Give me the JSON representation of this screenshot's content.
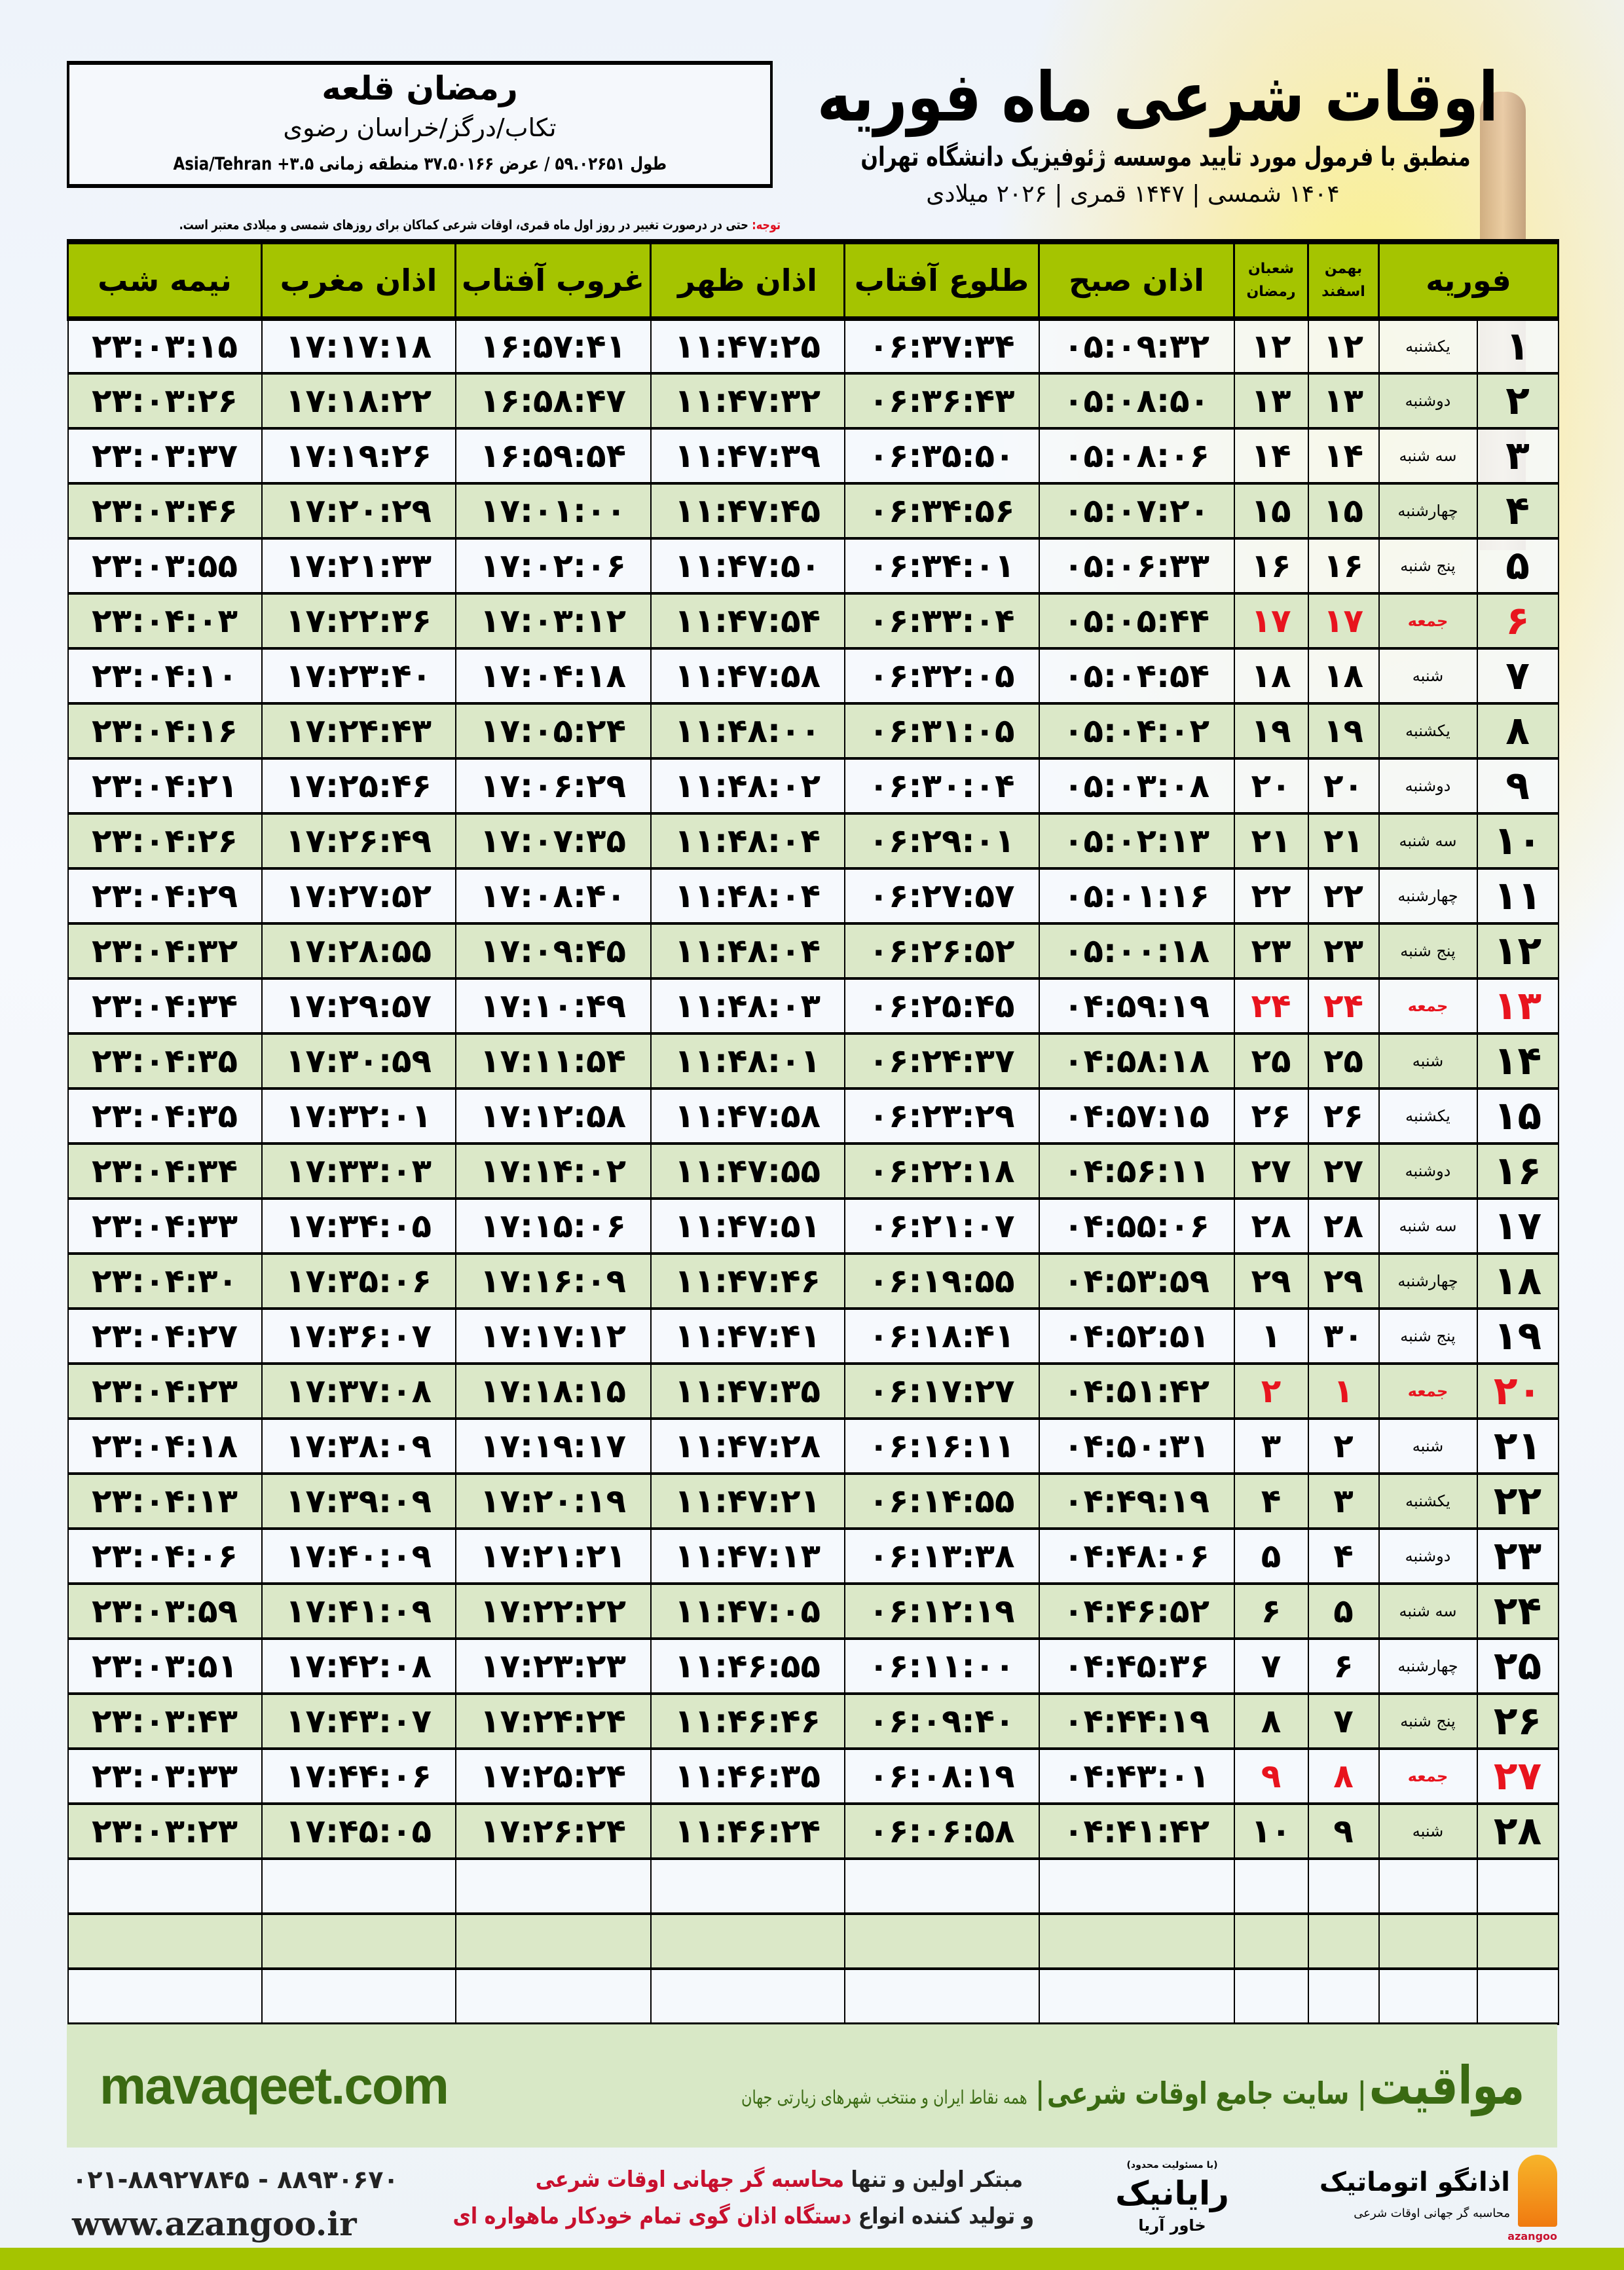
{
  "info": {
    "city": "رمضان قلعه",
    "province": "تکاب/درگز/خراسان رضوی",
    "coords": "طول ۵۹.۰۲۶۵۱ / عرض ۳۷.۵۰۱۶۶ منطقه زمانی ۳.۵+ Asia/Tehran"
  },
  "header": {
    "title": "اوقات شرعی ماه فوریه",
    "subtitle": "منطبق با فرمول مورد تایید موسسه ژئوفیزیک دانشگاه تهران",
    "dates": "۱۴۰۴ شمسی | ۱۴۴۷ قمری | ۲۰۲۶ میلادی"
  },
  "note": {
    "label": "توجه:",
    "text": " حتی در درصورت تغییر در روز اول ماه قمری، اوقات شرعی کماکان برای روزهای شمسی و میلادی معتبر است."
  },
  "colors": {
    "header_green": "#a5c400",
    "row_green": "#dbe8c8",
    "friday_red": "#e8141e",
    "brand_green": "#3a6a12"
  },
  "table": {
    "columns": {
      "day": "فوریه",
      "persian_top": "بهمن",
      "persian_bottom": "اسفند",
      "hijri_top": "شعبان",
      "hijri_bottom": "رمضان",
      "fajr": "اذان صبح",
      "sunrise": "طلوع آفتاب",
      "dhuhr": "اذان ظهر",
      "sunset": "غروب آفتاب",
      "maghrib": "اذان مغرب",
      "midnight": "نیمه شب"
    },
    "friday_rows": [
      6,
      13,
      20,
      27
    ],
    "rows": [
      [
        "۱",
        "یکشنبه",
        "۱۲",
        "۱۲",
        "۰۵:۰۹:۳۲",
        "۰۶:۳۷:۳۴",
        "۱۱:۴۷:۲۵",
        "۱۶:۵۷:۴۱",
        "۱۷:۱۷:۱۸",
        "۲۳:۰۳:۱۵"
      ],
      [
        "۲",
        "دوشنبه",
        "۱۳",
        "۱۳",
        "۰۵:۰۸:۵۰",
        "۰۶:۳۶:۴۳",
        "۱۱:۴۷:۳۲",
        "۱۶:۵۸:۴۷",
        "۱۷:۱۸:۲۲",
        "۲۳:۰۳:۲۶"
      ],
      [
        "۳",
        "سه شنبه",
        "۱۴",
        "۱۴",
        "۰۵:۰۸:۰۶",
        "۰۶:۳۵:۵۰",
        "۱۱:۴۷:۳۹",
        "۱۶:۵۹:۵۴",
        "۱۷:۱۹:۲۶",
        "۲۳:۰۳:۳۷"
      ],
      [
        "۴",
        "چهارشنبه",
        "۱۵",
        "۱۵",
        "۰۵:۰۷:۲۰",
        "۰۶:۳۴:۵۶",
        "۱۱:۴۷:۴۵",
        "۱۷:۰۱:۰۰",
        "۱۷:۲۰:۲۹",
        "۲۳:۰۳:۴۶"
      ],
      [
        "۵",
        "پنج شنبه",
        "۱۶",
        "۱۶",
        "۰۵:۰۶:۳۳",
        "۰۶:۳۴:۰۱",
        "۱۱:۴۷:۵۰",
        "۱۷:۰۲:۰۶",
        "۱۷:۲۱:۳۳",
        "۲۳:۰۳:۵۵"
      ],
      [
        "۶",
        "جمعه",
        "۱۷",
        "۱۷",
        "۰۵:۰۵:۴۴",
        "۰۶:۳۳:۰۴",
        "۱۱:۴۷:۵۴",
        "۱۷:۰۳:۱۲",
        "۱۷:۲۲:۳۶",
        "۲۳:۰۴:۰۳"
      ],
      [
        "۷",
        "شنبه",
        "۱۸",
        "۱۸",
        "۰۵:۰۴:۵۴",
        "۰۶:۳۲:۰۵",
        "۱۱:۴۷:۵۸",
        "۱۷:۰۴:۱۸",
        "۱۷:۲۳:۴۰",
        "۲۳:۰۴:۱۰"
      ],
      [
        "۸",
        "یکشنبه",
        "۱۹",
        "۱۹",
        "۰۵:۰۴:۰۲",
        "۰۶:۳۱:۰۵",
        "۱۱:۴۸:۰۰",
        "۱۷:۰۵:۲۴",
        "۱۷:۲۴:۴۳",
        "۲۳:۰۴:۱۶"
      ],
      [
        "۹",
        "دوشنبه",
        "۲۰",
        "۲۰",
        "۰۵:۰۳:۰۸",
        "۰۶:۳۰:۰۴",
        "۱۱:۴۸:۰۲",
        "۱۷:۰۶:۲۹",
        "۱۷:۲۵:۴۶",
        "۲۳:۰۴:۲۱"
      ],
      [
        "۱۰",
        "سه شنبه",
        "۲۱",
        "۲۱",
        "۰۵:۰۲:۱۳",
        "۰۶:۲۹:۰۱",
        "۱۱:۴۸:۰۴",
        "۱۷:۰۷:۳۵",
        "۱۷:۲۶:۴۹",
        "۲۳:۰۴:۲۶"
      ],
      [
        "۱۱",
        "چهارشنبه",
        "۲۲",
        "۲۲",
        "۰۵:۰۱:۱۶",
        "۰۶:۲۷:۵۷",
        "۱۱:۴۸:۰۴",
        "۱۷:۰۸:۴۰",
        "۱۷:۲۷:۵۲",
        "۲۳:۰۴:۲۹"
      ],
      [
        "۱۲",
        "پنج شنبه",
        "۲۳",
        "۲۳",
        "۰۵:۰۰:۱۸",
        "۰۶:۲۶:۵۲",
        "۱۱:۴۸:۰۴",
        "۱۷:۰۹:۴۵",
        "۱۷:۲۸:۵۵",
        "۲۳:۰۴:۳۲"
      ],
      [
        "۱۳",
        "جمعه",
        "۲۴",
        "۲۴",
        "۰۴:۵۹:۱۹",
        "۰۶:۲۵:۴۵",
        "۱۱:۴۸:۰۳",
        "۱۷:۱۰:۴۹",
        "۱۷:۲۹:۵۷",
        "۲۳:۰۴:۳۴"
      ],
      [
        "۱۴",
        "شنبه",
        "۲۵",
        "۲۵",
        "۰۴:۵۸:۱۸",
        "۰۶:۲۴:۳۷",
        "۱۱:۴۸:۰۱",
        "۱۷:۱۱:۵۴",
        "۱۷:۳۰:۵۹",
        "۲۳:۰۴:۳۵"
      ],
      [
        "۱۵",
        "یکشنبه",
        "۲۶",
        "۲۶",
        "۰۴:۵۷:۱۵",
        "۰۶:۲۳:۲۹",
        "۱۱:۴۷:۵۸",
        "۱۷:۱۲:۵۸",
        "۱۷:۳۲:۰۱",
        "۲۳:۰۴:۳۵"
      ],
      [
        "۱۶",
        "دوشنبه",
        "۲۷",
        "۲۷",
        "۰۴:۵۶:۱۱",
        "۰۶:۲۲:۱۸",
        "۱۱:۴۷:۵۵",
        "۱۷:۱۴:۰۲",
        "۱۷:۳۳:۰۳",
        "۲۳:۰۴:۳۴"
      ],
      [
        "۱۷",
        "سه شنبه",
        "۲۸",
        "۲۸",
        "۰۴:۵۵:۰۶",
        "۰۶:۲۱:۰۷",
        "۱۱:۴۷:۵۱",
        "۱۷:۱۵:۰۶",
        "۱۷:۳۴:۰۵",
        "۲۳:۰۴:۳۳"
      ],
      [
        "۱۸",
        "چهارشنبه",
        "۲۹",
        "۲۹",
        "۰۴:۵۳:۵۹",
        "۰۶:۱۹:۵۵",
        "۱۱:۴۷:۴۶",
        "۱۷:۱۶:۰۹",
        "۱۷:۳۵:۰۶",
        "۲۳:۰۴:۳۰"
      ],
      [
        "۱۹",
        "پنج شنبه",
        "۳۰",
        "۱",
        "۰۴:۵۲:۵۱",
        "۰۶:۱۸:۴۱",
        "۱۱:۴۷:۴۱",
        "۱۷:۱۷:۱۲",
        "۱۷:۳۶:۰۷",
        "۲۳:۰۴:۲۷"
      ],
      [
        "۲۰",
        "جمعه",
        "۱",
        "۲",
        "۰۴:۵۱:۴۲",
        "۰۶:۱۷:۲۷",
        "۱۱:۴۷:۳۵",
        "۱۷:۱۸:۱۵",
        "۱۷:۳۷:۰۸",
        "۲۳:۰۴:۲۳"
      ],
      [
        "۲۱",
        "شنبه",
        "۲",
        "۳",
        "۰۴:۵۰:۳۱",
        "۰۶:۱۶:۱۱",
        "۱۱:۴۷:۲۸",
        "۱۷:۱۹:۱۷",
        "۱۷:۳۸:۰۹",
        "۲۳:۰۴:۱۸"
      ],
      [
        "۲۲",
        "یکشنبه",
        "۳",
        "۴",
        "۰۴:۴۹:۱۹",
        "۰۶:۱۴:۵۵",
        "۱۱:۴۷:۲۱",
        "۱۷:۲۰:۱۹",
        "۱۷:۳۹:۰۹",
        "۲۳:۰۴:۱۳"
      ],
      [
        "۲۳",
        "دوشنبه",
        "۴",
        "۵",
        "۰۴:۴۸:۰۶",
        "۰۶:۱۳:۳۸",
        "۱۱:۴۷:۱۳",
        "۱۷:۲۱:۲۱",
        "۱۷:۴۰:۰۹",
        "۲۳:۰۴:۰۶"
      ],
      [
        "۲۴",
        "سه شنبه",
        "۵",
        "۶",
        "۰۴:۴۶:۵۲",
        "۰۶:۱۲:۱۹",
        "۱۱:۴۷:۰۵",
        "۱۷:۲۲:۲۲",
        "۱۷:۴۱:۰۹",
        "۲۳:۰۳:۵۹"
      ],
      [
        "۲۵",
        "چهارشنبه",
        "۶",
        "۷",
        "۰۴:۴۵:۳۶",
        "۰۶:۱۱:۰۰",
        "۱۱:۴۶:۵۵",
        "۱۷:۲۳:۲۳",
        "۱۷:۴۲:۰۸",
        "۲۳:۰۳:۵۱"
      ],
      [
        "۲۶",
        "پنج شنبه",
        "۷",
        "۸",
        "۰۴:۴۴:۱۹",
        "۰۶:۰۹:۴۰",
        "۱۱:۴۶:۴۶",
        "۱۷:۲۴:۲۴",
        "۱۷:۴۳:۰۷",
        "۲۳:۰۳:۴۳"
      ],
      [
        "۲۷",
        "جمعه",
        "۸",
        "۹",
        "۰۴:۴۳:۰۱",
        "۰۶:۰۸:۱۹",
        "۱۱:۴۶:۳۵",
        "۱۷:۲۵:۲۴",
        "۱۷:۴۴:۰۶",
        "۲۳:۰۳:۳۳"
      ],
      [
        "۲۸",
        "شنبه",
        "۹",
        "۱۰",
        "۰۴:۴۱:۴۲",
        "۰۶:۰۶:۵۸",
        "۱۱:۴۶:۲۴",
        "۱۷:۲۶:۲۴",
        "۱۷:۴۵:۰۵",
        "۲۳:۰۳:۲۳"
      ]
    ]
  },
  "footer": {
    "brand": "مواقیت",
    "slogan": "سایت جامع اوقات شرعی",
    "sub": "همه نقاط ایران و منتخب شهرهای زیارتی جهان",
    "site": "mavaqeet.com",
    "phones": "۰۲۱-۸۸۹۲۷۸۴۵ - ۸۸۹۳۰۶۷۰",
    "web": "www.azangoo.ir",
    "promo1_a": "مبتکر اولین و تنها ",
    "promo1_b": "محاسبه گر جهانی اوقات شرعی",
    "promo2_a": "و تولید کننده انواع ",
    "promo2_b": "دستگاه اذان گوی تمام خودکار ماهواره ای",
    "logo_rayanik_note": "(با مسئولیت محدود)",
    "logo_rayanik": "رایانیک",
    "logo_rayanik_sub": "خاور آریا",
    "logo_azangoo": "اذانگو اتوماتیک",
    "logo_azangoo_sub": "محاسبه گر جهانی اوقات شرعی",
    "logo_azangoo_latin": "azangoo"
  }
}
